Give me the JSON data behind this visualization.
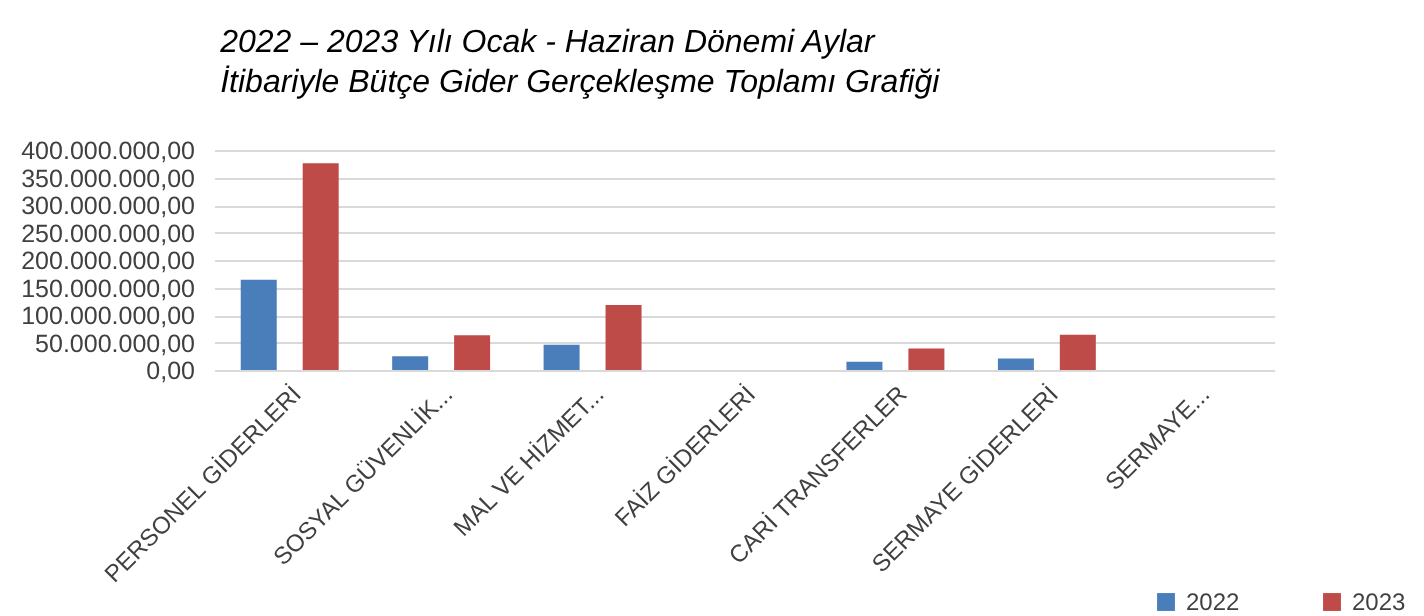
{
  "chart_data": {
    "type": "bar",
    "title": "2022 – 2023 Yılı Ocak - Haziran Dönemi Aylar",
    "subtitle": "İtibariyle Bütçe Gider Gerçekleşme Toplamı Grafiği",
    "categories": [
      "PERSONEL GİDERLERİ",
      "SOSYAL GÜVENLİK...",
      "MAL VE HİZMET...",
      "FAİZ GİDERLERİ",
      "CARİ TRANSFERLER",
      "SERMAYE GİDERLERİ",
      "SERMAYE..."
    ],
    "series": [
      {
        "name": "2022",
        "color": "#4a7ebb",
        "values": [
          164000000,
          25000000,
          46000000,
          0,
          15000000,
          21000000,
          0
        ]
      },
      {
        "name": "2023",
        "color": "#be4b48",
        "values": [
          376000000,
          63000000,
          118000000,
          0,
          39000000,
          64000000,
          0
        ]
      }
    ],
    "ylim": [
      0,
      400000000
    ],
    "yticks": [
      {
        "value": 0,
        "label": "0,00"
      },
      {
        "value": 50000000,
        "label": "50.000.000,00"
      },
      {
        "value": 100000000,
        "label": "100.000.000,00"
      },
      {
        "value": 150000000,
        "label": "150.000.000,00"
      },
      {
        "value": 200000000,
        "label": "200.000.000,00"
      },
      {
        "value": 250000000,
        "label": "250.000.000,00"
      },
      {
        "value": 300000000,
        "label": "300.000.000,00"
      },
      {
        "value": 350000000,
        "label": "350.000.000,00"
      },
      {
        "value": 400000000,
        "label": "400.000.000,00"
      }
    ],
    "grid": "y",
    "legend": "bottom right"
  }
}
